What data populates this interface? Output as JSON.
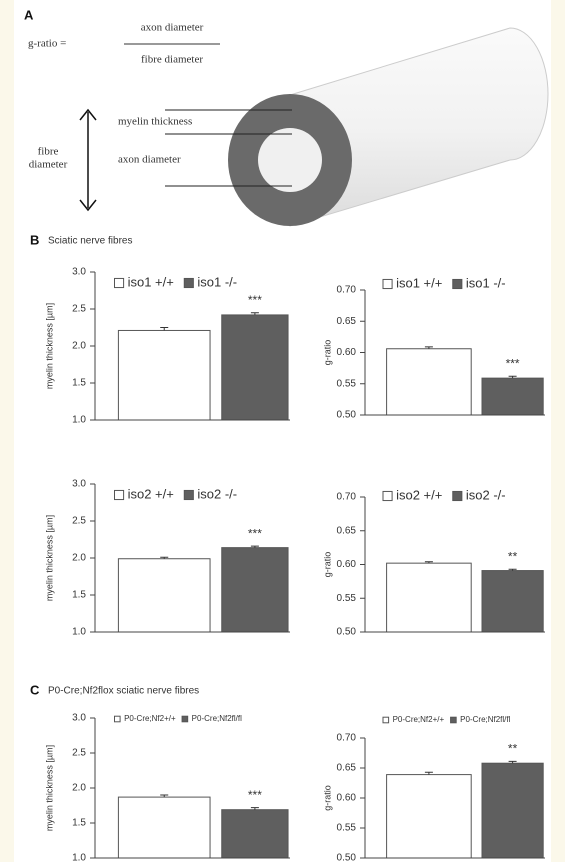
{
  "panel_a": {
    "label": "A",
    "formula_lhs": "g-ratio  =",
    "numerator": "axon diameter",
    "denominator": "fibre diameter",
    "myelin_label": "myelin thickness",
    "axon_label": "axon diameter",
    "fibre_label_1": "fibre",
    "fibre_label_2": "diameter"
  },
  "panel_b": {
    "label": "B",
    "title": "Sciatic nerve fibres"
  },
  "panel_c": {
    "label": "C",
    "title": "P0-Cre;Nf2flox sciatic nerve fibres"
  },
  "chart_data": [
    {
      "type": "bar",
      "ylabel": "myelin thickness [µm]",
      "ylim": [
        1.0,
        3.0
      ],
      "yticks": [
        {
          "value": 1.0,
          "label": "1.0"
        },
        1.5,
        {
          "value": 2.0,
          "label": "2.0"
        },
        2.5,
        {
          "value": 3.0,
          "label": "3.0"
        }
      ],
      "series": [
        {
          "name": "iso1 +/+",
          "color": "#ffffff",
          "values": [
            2.21
          ],
          "errors": [
            0.04
          ]
        },
        {
          "name": "iso1 -/-",
          "color": "#5f5f5f",
          "values": [
            2.42
          ],
          "errors": [
            0.03
          ]
        }
      ],
      "significance": "***"
    },
    {
      "type": "bar",
      "ylabel": "g-ratio",
      "ylim": [
        0.5,
        0.7
      ],
      "yticks": [
        {
          "value": 0.5,
          "label": "0.50"
        },
        {
          "value": 0.55,
          "label": "0.55"
        },
        {
          "value": 0.6,
          "label": "0.60"
        },
        {
          "value": 0.65,
          "label": "0.65"
        },
        {
          "value": 0.7,
          "label": "0.70"
        }
      ],
      "series": [
        {
          "name": "iso1 +/+",
          "color": "#ffffff",
          "values": [
            0.606
          ],
          "errors": [
            0.003
          ]
        },
        {
          "name": "iso1 -/-",
          "color": "#5f5f5f",
          "values": [
            0.559
          ],
          "errors": [
            0.003
          ]
        }
      ],
      "significance": "***"
    },
    {
      "type": "bar",
      "ylabel": "myelin thickness [µm]",
      "ylim": [
        1.0,
        3.0
      ],
      "yticks": [
        {
          "value": 1.0,
          "label": "1.0"
        },
        1.5,
        {
          "value": 2.0,
          "label": "2.0"
        },
        2.5,
        {
          "value": 3.0,
          "label": "3.0"
        }
      ],
      "series": [
        {
          "name": "iso2 +/+",
          "color": "#ffffff",
          "values": [
            1.99
          ],
          "errors": [
            0.02
          ]
        },
        {
          "name": "iso2 -/-",
          "color": "#5f5f5f",
          "values": [
            2.14
          ],
          "errors": [
            0.02
          ]
        }
      ],
      "significance": "***"
    },
    {
      "type": "bar",
      "ylabel": "g-ratio",
      "ylim": [
        0.5,
        0.7
      ],
      "yticks": [
        {
          "value": 0.5,
          "label": "0.50"
        },
        {
          "value": 0.55,
          "label": "0.55"
        },
        {
          "value": 0.6,
          "label": "0.60"
        },
        {
          "value": 0.65,
          "label": "0.65"
        },
        {
          "value": 0.7,
          "label": "0.70"
        }
      ],
      "series": [
        {
          "name": "iso2 +/+",
          "color": "#ffffff",
          "values": [
            0.602
          ],
          "errors": [
            0.002
          ]
        },
        {
          "name": "iso2 -/-",
          "color": "#5f5f5f",
          "values": [
            0.591
          ],
          "errors": [
            0.002
          ]
        }
      ],
      "significance": "**"
    },
    {
      "type": "bar",
      "ylabel": "myelin thickness [µm]",
      "ylim": [
        1.0,
        3.0
      ],
      "yticks": [
        {
          "value": 1.0,
          "label": "1.0"
        },
        1.5,
        {
          "value": 2.0,
          "label": "2.0"
        },
        2.5,
        {
          "value": 3.0,
          "label": "3.0"
        }
      ],
      "series": [
        {
          "name": "P0-Cre;Nf2+/+",
          "color": "#ffffff",
          "values": [
            1.87
          ],
          "errors": [
            0.03
          ]
        },
        {
          "name": "P0-Cre;Nf2fl/fl",
          "color": "#5f5f5f",
          "values": [
            1.69
          ],
          "errors": [
            0.03
          ]
        }
      ],
      "significance": "***"
    },
    {
      "type": "bar",
      "ylabel": "g-ratio",
      "ylim": [
        0.5,
        0.7
      ],
      "yticks": [
        {
          "value": 0.5,
          "label": "0.50"
        },
        {
          "value": 0.55,
          "label": "0.55"
        },
        {
          "value": 0.6,
          "label": "0.60"
        },
        {
          "value": 0.65,
          "label": "0.65"
        },
        {
          "value": 0.7,
          "label": "0.70"
        }
      ],
      "series": [
        {
          "name": "P0-Cre;Nf2+/+",
          "color": "#ffffff",
          "values": [
            0.639
          ],
          "errors": [
            0.004
          ]
        },
        {
          "name": "P0-Cre;Nf2fl/fl",
          "color": "#5f5f5f",
          "values": [
            0.658
          ],
          "errors": [
            0.003
          ]
        }
      ],
      "significance": "**"
    }
  ]
}
